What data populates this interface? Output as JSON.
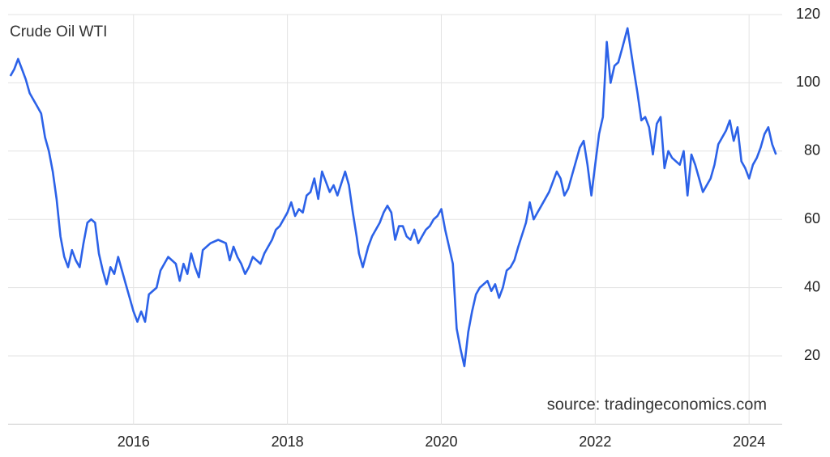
{
  "chart_data": {
    "type": "line",
    "title": "Crude Oil WTI",
    "source": "source: tradingeconomics.com",
    "xlim": [
      2014.37,
      2024.43
    ],
    "xticks": [
      2016,
      2018,
      2020,
      2022,
      2024
    ],
    "ylim": [
      0,
      120
    ],
    "yticks": [
      20,
      40,
      60,
      80,
      100,
      120
    ],
    "grid": true,
    "x": [
      2014.4,
      2014.45,
      2014.5,
      2014.55,
      2014.6,
      2014.65,
      2014.75,
      2014.8,
      2014.85,
      2014.9,
      2014.95,
      2015.0,
      2015.05,
      2015.1,
      2015.15,
      2015.2,
      2015.25,
      2015.3,
      2015.35,
      2015.4,
      2015.45,
      2015.5,
      2015.55,
      2015.6,
      2015.65,
      2015.7,
      2015.75,
      2015.8,
      2015.85,
      2015.9,
      2015.95,
      2016.0,
      2016.05,
      2016.1,
      2016.15,
      2016.2,
      2016.3,
      2016.35,
      2016.45,
      2016.55,
      2016.6,
      2016.65,
      2016.7,
      2016.75,
      2016.8,
      2016.85,
      2016.9,
      2017.0,
      2017.1,
      2017.2,
      2017.25,
      2017.3,
      2017.35,
      2017.4,
      2017.45,
      2017.5,
      2017.55,
      2017.65,
      2017.7,
      2017.8,
      2017.85,
      2017.9,
      2018.0,
      2018.05,
      2018.1,
      2018.15,
      2018.2,
      2018.25,
      2018.3,
      2018.35,
      2018.4,
      2018.45,
      2018.5,
      2018.55,
      2018.6,
      2018.65,
      2018.75,
      2018.8,
      2018.85,
      2018.9,
      2018.93,
      2018.98,
      2019.05,
      2019.1,
      2019.2,
      2019.25,
      2019.3,
      2019.35,
      2019.4,
      2019.45,
      2019.5,
      2019.55,
      2019.6,
      2019.65,
      2019.7,
      2019.75,
      2019.8,
      2019.85,
      2019.9,
      2019.95,
      2020.0,
      2020.05,
      2020.1,
      2020.15,
      2020.2,
      2020.25,
      2020.3,
      2020.35,
      2020.4,
      2020.45,
      2020.5,
      2020.55,
      2020.6,
      2020.65,
      2020.7,
      2020.75,
      2020.8,
      2020.85,
      2020.9,
      2020.95,
      2021.0,
      2021.1,
      2021.15,
      2021.2,
      2021.25,
      2021.3,
      2021.4,
      2021.5,
      2021.55,
      2021.6,
      2021.65,
      2021.7,
      2021.8,
      2021.85,
      2021.9,
      2021.95,
      2022.0,
      2022.05,
      2022.1,
      2022.15,
      2022.2,
      2022.25,
      2022.3,
      2022.35,
      2022.42,
      2022.5,
      2022.55,
      2022.6,
      2022.65,
      2022.7,
      2022.75,
      2022.8,
      2022.85,
      2022.9,
      2022.95,
      2023.0,
      2023.1,
      2023.15,
      2023.2,
      2023.25,
      2023.3,
      2023.35,
      2023.4,
      2023.5,
      2023.55,
      2023.6,
      2023.7,
      2023.75,
      2023.8,
      2023.85,
      2023.9,
      2023.95,
      2024.0,
      2024.05,
      2024.1,
      2024.15,
      2024.2,
      2024.25,
      2024.3,
      2024.35
    ],
    "series": [
      {
        "name": "Crude Oil WTI",
        "color": "#2c62e8",
        "values": [
          102,
          104,
          107,
          104,
          101,
          97,
          93,
          91,
          84,
          80,
          74,
          66,
          55,
          49,
          46,
          51,
          48,
          46,
          53,
          59,
          60,
          59,
          50,
          45,
          41,
          46,
          44,
          49,
          45,
          41,
          37,
          33,
          30,
          33,
          30,
          38,
          40,
          45,
          49,
          47,
          42,
          47,
          44,
          50,
          46,
          43,
          51,
          53,
          54,
          53,
          48,
          52,
          49,
          47,
          44,
          46,
          49,
          47,
          50,
          54,
          57,
          58,
          62,
          65,
          61,
          63,
          62,
          67,
          68,
          72,
          66,
          74,
          71,
          68,
          70,
          67,
          74,
          70,
          62,
          55,
          50,
          46,
          52,
          55,
          59,
          62,
          64,
          62,
          54,
          58,
          58,
          55,
          54,
          57,
          53,
          55,
          57,
          58,
          60,
          61,
          63,
          57,
          52,
          47,
          28,
          22,
          17,
          27,
          33,
          38,
          40,
          41,
          42,
          39,
          41,
          37,
          40,
          45,
          46,
          48,
          52,
          59,
          65,
          60,
          62,
          64,
          68,
          74,
          72,
          67,
          69,
          73,
          81,
          83,
          76,
          67,
          76,
          85,
          90,
          112,
          100,
          105,
          106,
          110,
          116,
          104,
          97,
          89,
          90,
          87,
          79,
          88,
          90,
          75,
          80,
          78,
          76,
          80,
          67,
          79,
          76,
          72,
          68,
          72,
          76,
          82,
          86,
          89,
          83,
          87,
          77,
          75,
          72,
          76,
          78,
          81,
          85,
          87,
          82,
          79
        ]
      }
    ]
  }
}
